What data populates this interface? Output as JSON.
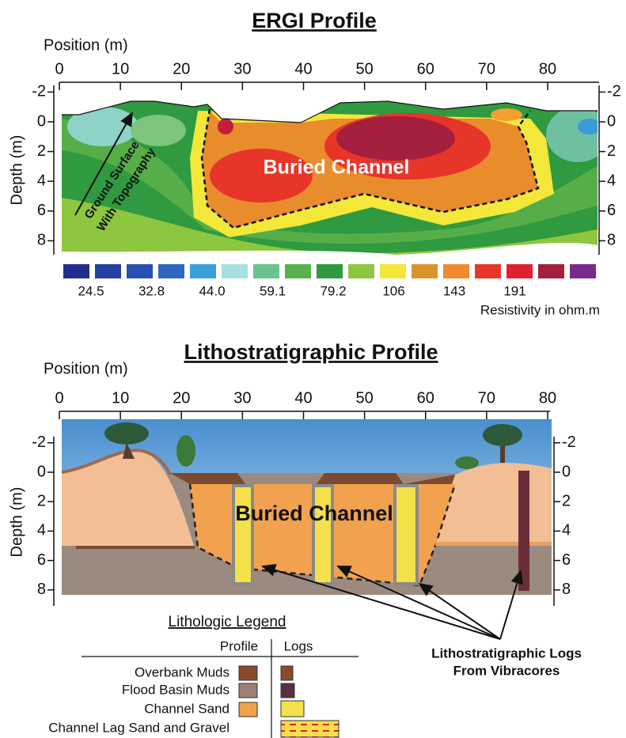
{
  "ergi": {
    "title": "ERGI Profile",
    "x_label": "Position (m)",
    "x_ticks": [
      0,
      10,
      20,
      30,
      40,
      50,
      60,
      70,
      80
    ],
    "y_label": "Depth (m)",
    "y_ticks": [
      -2,
      0,
      2,
      4,
      6,
      8
    ],
    "colorbar_labels": [
      "24.5",
      "32.8",
      "44.0",
      "59.1",
      "79.2",
      "106",
      "143",
      "191"
    ],
    "colorbar_unit": "Resistivity in  ohm.m",
    "channel_label": "Buried Channel",
    "surface_label": [
      "Ground Surface",
      "With Topography"
    ]
  },
  "litho": {
    "title": "Lithostratigraphic Profile",
    "x_label": "Position (m)",
    "x_ticks": [
      0,
      10,
      20,
      30,
      40,
      50,
      60,
      70,
      80
    ],
    "y_label": "Depth (m)",
    "y_ticks": [
      -2,
      0,
      2,
      4,
      6,
      8
    ],
    "channel_label": "Buried Channel"
  },
  "legend": {
    "title": "Lithologic Legend",
    "headers": [
      "Profile",
      "Logs"
    ],
    "rows": [
      "Overbank Muds",
      "Flood Basin Muds",
      "Channel Sand",
      "Channel Lag Sand and Gravel"
    ]
  },
  "callout": [
    "Lithostratigraphic Logs",
    "From Vibracores"
  ]
}
